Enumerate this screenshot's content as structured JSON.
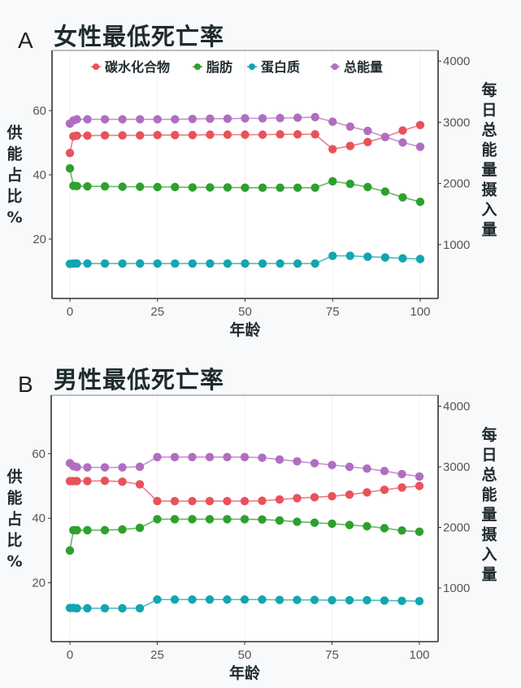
{
  "panels": [
    {
      "letter": "A",
      "title": "女性最低死亡率",
      "show_legend": true
    },
    {
      "letter": "B",
      "title": "男性最低死亡率",
      "show_legend": false
    }
  ],
  "legend": [
    {
      "label": "碳水化合物",
      "color": "#e8525a"
    },
    {
      "label": "脂肪",
      "color": "#2ea02e"
    },
    {
      "label": "蛋白质",
      "color": "#13a5b0"
    },
    {
      "label": "总能量",
      "color": "#b06ec0"
    }
  ],
  "axes": {
    "xlabel": "年龄",
    "ylabel_left": [
      "供",
      "能",
      "占",
      "比",
      "%"
    ],
    "ylabel_right": [
      "每",
      "日",
      "总",
      "能",
      "量",
      "摄",
      "入",
      "量"
    ],
    "x_ticks": [
      0,
      25,
      50,
      75,
      100
    ],
    "y_left_ticks": [
      20,
      40,
      60
    ],
    "y_right_ticks": [
      1000,
      2000,
      3000,
      4000
    ]
  },
  "chart_data": [
    {
      "type": "line",
      "title": "女性最低死亡率",
      "panel": "A",
      "xlabel": "年龄",
      "ylabel": "供能占比 %",
      "ylabel_right": "每日总能量摄入量",
      "xlim": [
        0,
        100
      ],
      "ylim_left": [
        0,
        75
      ],
      "ylim_right": [
        0,
        4000
      ],
      "x": [
        0,
        1,
        2,
        5,
        10,
        15,
        20,
        25,
        30,
        35,
        40,
        45,
        50,
        55,
        60,
        65,
        70,
        75,
        80,
        85,
        90,
        95,
        100
      ],
      "series": [
        {
          "name": "碳水化合物",
          "axis": "left",
          "color": "#e8525a",
          "values": [
            46.8,
            52.0,
            52.2,
            52.2,
            52.3,
            52.3,
            52.3,
            52.4,
            52.4,
            52.4,
            52.5,
            52.5,
            52.5,
            52.5,
            52.6,
            52.6,
            52.6,
            48.0,
            49.0,
            50.2,
            51.8,
            53.8,
            55.5
          ]
        },
        {
          "name": "脂肪",
          "axis": "left",
          "color": "#2ea02e",
          "values": [
            42.0,
            36.6,
            36.5,
            36.4,
            36.4,
            36.3,
            36.3,
            36.2,
            36.2,
            36.1,
            36.1,
            36.1,
            36.0,
            36.0,
            36.0,
            36.0,
            36.0,
            38.0,
            37.2,
            36.2,
            34.8,
            33.0,
            31.6
          ]
        },
        {
          "name": "蛋白质",
          "axis": "left",
          "color": "#13a5b0",
          "values": [
            12.3,
            12.4,
            12.4,
            12.4,
            12.4,
            12.4,
            12.4,
            12.4,
            12.4,
            12.4,
            12.4,
            12.4,
            12.4,
            12.4,
            12.4,
            12.4,
            12.4,
            14.8,
            14.8,
            14.5,
            14.3,
            14.0,
            13.8
          ]
        },
        {
          "name": "总能量",
          "axis": "right",
          "color": "#b06ec0",
          "values": [
            2980,
            3030,
            3050,
            3050,
            3050,
            3050,
            3050,
            3050,
            3050,
            3055,
            3060,
            3060,
            3065,
            3065,
            3070,
            3075,
            3085,
            3010,
            2930,
            2860,
            2760,
            2670,
            2600
          ]
        }
      ]
    },
    {
      "type": "line",
      "title": "男性最低死亡率",
      "panel": "B",
      "xlabel": "年龄",
      "ylabel": "供能占比 %",
      "ylabel_right": "每日总能量摄入量",
      "xlim": [
        0,
        100
      ],
      "ylim_left": [
        0,
        75
      ],
      "ylim_right": [
        0,
        4000
      ],
      "x": [
        0,
        1,
        2,
        5,
        10,
        15,
        20,
        25,
        30,
        35,
        40,
        45,
        50,
        55,
        60,
        65,
        70,
        75,
        80,
        85,
        90,
        95,
        100
      ],
      "series": [
        {
          "name": "碳水化合物",
          "axis": "left",
          "color": "#e8525a",
          "values": [
            51.5,
            51.5,
            51.5,
            51.5,
            51.6,
            51.3,
            50.5,
            45.3,
            45.3,
            45.3,
            45.3,
            45.3,
            45.3,
            45.4,
            45.8,
            46.2,
            46.5,
            46.8,
            47.3,
            48.0,
            48.8,
            49.5,
            50.0
          ]
        },
        {
          "name": "脂肪",
          "axis": "left",
          "color": "#2ea02e",
          "values": [
            30.0,
            36.3,
            36.3,
            36.3,
            36.3,
            36.5,
            37.0,
            39.7,
            39.7,
            39.7,
            39.7,
            39.7,
            39.7,
            39.6,
            39.3,
            38.9,
            38.6,
            38.3,
            37.9,
            37.5,
            36.9,
            36.2,
            35.8
          ]
        },
        {
          "name": "蛋白质",
          "axis": "left",
          "color": "#13a5b0",
          "values": [
            12.2,
            12.2,
            12.1,
            12.1,
            12.1,
            12.1,
            12.1,
            14.8,
            14.8,
            14.8,
            14.8,
            14.8,
            14.8,
            14.8,
            14.7,
            14.7,
            14.7,
            14.6,
            14.6,
            14.6,
            14.5,
            14.4,
            14.3
          ]
        },
        {
          "name": "总能量",
          "axis": "right",
          "color": "#b06ec0",
          "values": [
            3060,
            3010,
            2995,
            2990,
            2990,
            2990,
            3000,
            3160,
            3160,
            3160,
            3160,
            3160,
            3160,
            3150,
            3120,
            3090,
            3060,
            3030,
            3000,
            2970,
            2930,
            2880,
            2840
          ]
        }
      ]
    }
  ]
}
